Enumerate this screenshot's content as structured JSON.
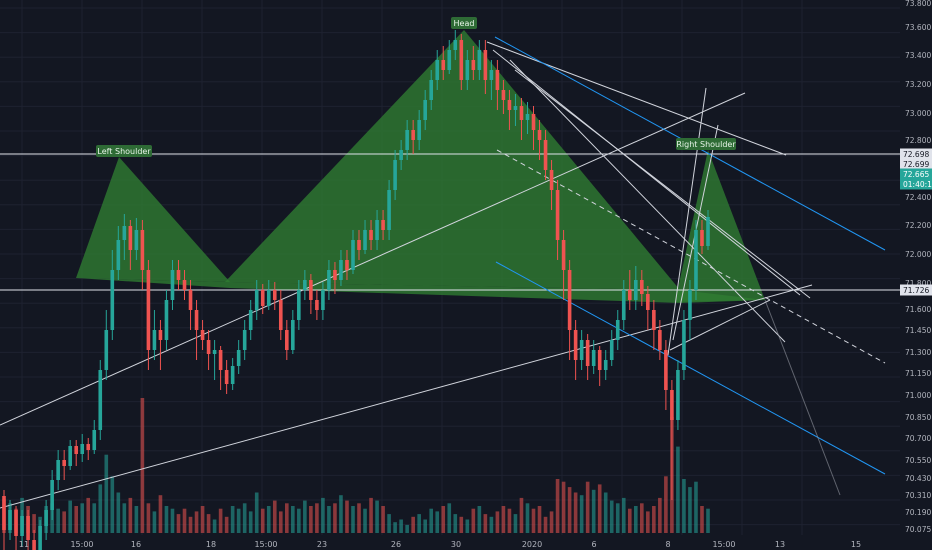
{
  "chart_data": {
    "type": "candlestick",
    "title": "",
    "price_axis": {
      "min": 70.0,
      "max": 73.7,
      "ticks": [
        "73.800",
        "73.600",
        "73.400",
        "73.200",
        "73.000",
        "72.800",
        "72.400",
        "72.200",
        "72.000",
        "71.800",
        "71.600",
        "71.450",
        "71.300",
        "71.150",
        "71.000",
        "70.850",
        "70.700",
        "70.550",
        "70.430",
        "70.310",
        "70.190",
        "70.075"
      ],
      "tick_values": [
        73.8,
        73.6,
        73.4,
        73.2,
        73.0,
        72.8,
        72.4,
        72.2,
        72.0,
        71.8,
        71.6,
        71.45,
        71.3,
        71.15,
        71.0,
        70.85,
        70.7,
        70.55,
        70.43,
        70.31,
        70.19,
        70.075
      ],
      "badges": [
        {
          "label": "72.698",
          "value": 72.698,
          "style": "line"
        },
        {
          "label": "72.699",
          "value": 72.675,
          "style": "line"
        },
        {
          "label": "72.665",
          "value": 72.62,
          "style": "last"
        },
        {
          "label": "01:40:10",
          "value": 72.56,
          "style": "last"
        },
        {
          "label": "71.726",
          "value": 71.726,
          "style": "line"
        }
      ]
    },
    "time_axis": {
      "labels": [
        "11",
        "15:00",
        "16",
        "18",
        "15:00",
        "23",
        "26",
        "30",
        "2020",
        "6",
        "8",
        "15:00",
        "13",
        "15"
      ],
      "positions": [
        0,
        1,
        2,
        3,
        4,
        5,
        6,
        7,
        8,
        9,
        10,
        11,
        12,
        13
      ]
    },
    "colors": {
      "background": "#131722",
      "up": "#26a69a",
      "down": "#ef5350",
      "pattern_fill": "#2f7d32",
      "trendline": "#d1d4dc",
      "channel": "#2196f3",
      "label_bg": "#2e6b35"
    },
    "annotations": [
      {
        "text": "Left Shoulder"
      },
      {
        "text": "Head"
      },
      {
        "text": "Right Shoulder"
      }
    ],
    "candles": [
      [
        71.27,
        71.1,
        71.3,
        71.0
      ],
      [
        71.1,
        71.2,
        71.25,
        71.05
      ],
      [
        71.2,
        71.07,
        71.22,
        70.98
      ],
      [
        71.07,
        71.17,
        71.2,
        71.02
      ],
      [
        71.17,
        71.05,
        71.2,
        70.98
      ],
      [
        71.05,
        70.98,
        71.1,
        70.92
      ],
      [
        70.98,
        71.12,
        71.15,
        70.95
      ],
      [
        71.12,
        71.2,
        71.25,
        71.05
      ],
      [
        71.2,
        71.35,
        71.4,
        71.15
      ],
      [
        71.35,
        71.45,
        71.5,
        71.3
      ],
      [
        71.45,
        71.42,
        71.5,
        71.35
      ],
      [
        71.42,
        71.52,
        71.55,
        71.4
      ],
      [
        71.52,
        71.48,
        71.55,
        71.42
      ],
      [
        71.48,
        71.53,
        71.58,
        71.44
      ],
      [
        71.53,
        71.5,
        71.56,
        71.45
      ],
      [
        71.5,
        71.6,
        71.65,
        71.48
      ],
      [
        71.6,
        71.9,
        71.95,
        71.55
      ],
      [
        71.9,
        72.1,
        72.2,
        71.85
      ],
      [
        72.1,
        72.4,
        72.5,
        72.05
      ],
      [
        72.4,
        72.55,
        72.62,
        72.35
      ],
      [
        72.55,
        72.62,
        72.68,
        72.45
      ],
      [
        72.62,
        72.5,
        72.65,
        72.4
      ],
      [
        72.5,
        72.6,
        72.66,
        72.45
      ],
      [
        72.6,
        72.4,
        72.65,
        72.3
      ],
      [
        72.4,
        72.0,
        72.45,
        71.9
      ],
      [
        72.0,
        72.1,
        72.2,
        71.95
      ],
      [
        72.1,
        72.05,
        72.15,
        71.9
      ],
      [
        72.05,
        72.25,
        72.3,
        72.0
      ],
      [
        72.25,
        72.4,
        72.45,
        72.2
      ],
      [
        72.4,
        72.35,
        72.45,
        72.3
      ],
      [
        72.35,
        72.3,
        72.4,
        72.25
      ],
      [
        72.3,
        72.2,
        72.35,
        72.1
      ],
      [
        72.2,
        72.1,
        72.25,
        71.95
      ],
      [
        72.1,
        72.05,
        72.15,
        72.0
      ],
      [
        72.05,
        71.98,
        72.1,
        71.9
      ],
      [
        71.98,
        72.0,
        72.05,
        71.85
      ],
      [
        72.0,
        71.9,
        72.02,
        71.8
      ],
      [
        71.9,
        71.83,
        71.95,
        71.78
      ],
      [
        71.83,
        71.92,
        71.96,
        71.8
      ],
      [
        71.92,
        72.0,
        72.05,
        71.88
      ],
      [
        72.0,
        72.1,
        72.15,
        71.95
      ],
      [
        72.1,
        72.2,
        72.25,
        72.05
      ],
      [
        72.2,
        72.3,
        72.35,
        72.15
      ],
      [
        72.3,
        72.22,
        72.33,
        72.18
      ],
      [
        72.22,
        72.3,
        72.35,
        72.2
      ],
      [
        72.3,
        72.25,
        72.34,
        72.2
      ],
      [
        72.25,
        72.1,
        72.3,
        72.05
      ],
      [
        72.1,
        72.0,
        72.15,
        71.95
      ],
      [
        72.0,
        72.15,
        72.2,
        71.98
      ],
      [
        72.15,
        72.3,
        72.35,
        72.1
      ],
      [
        72.3,
        72.35,
        72.4,
        72.25
      ],
      [
        72.35,
        72.25,
        72.38,
        72.18
      ],
      [
        72.25,
        72.2,
        72.3,
        72.15
      ],
      [
        72.2,
        72.3,
        72.34,
        72.15
      ],
      [
        72.3,
        72.4,
        72.45,
        72.25
      ],
      [
        72.4,
        72.35,
        72.44,
        72.28
      ],
      [
        72.35,
        72.45,
        72.5,
        72.32
      ],
      [
        72.45,
        72.4,
        72.5,
        72.35
      ],
      [
        72.4,
        72.55,
        72.6,
        72.38
      ],
      [
        72.55,
        72.5,
        72.6,
        72.45
      ],
      [
        72.5,
        72.6,
        72.65,
        72.48
      ],
      [
        72.6,
        72.55,
        72.65,
        72.5
      ],
      [
        72.55,
        72.65,
        72.7,
        72.5
      ],
      [
        72.65,
        72.6,
        72.7,
        72.55
      ],
      [
        72.6,
        72.8,
        72.85,
        72.55
      ],
      [
        72.8,
        72.95,
        73.0,
        72.75
      ],
      [
        72.95,
        73.0,
        73.05,
        72.9
      ],
      [
        73.0,
        73.1,
        73.15,
        72.95
      ],
      [
        73.1,
        73.05,
        73.15,
        72.98
      ],
      [
        73.05,
        73.15,
        73.2,
        73.0
      ],
      [
        73.15,
        73.25,
        73.3,
        73.1
      ],
      [
        73.25,
        73.35,
        73.4,
        73.2
      ],
      [
        73.35,
        73.45,
        73.5,
        73.3
      ],
      [
        73.45,
        73.4,
        73.52,
        73.35
      ],
      [
        73.4,
        73.5,
        73.55,
        73.38
      ],
      [
        73.5,
        73.55,
        73.6,
        73.45
      ],
      [
        73.55,
        73.35,
        73.58,
        73.3
      ],
      [
        73.35,
        73.45,
        73.5,
        73.3
      ],
      [
        73.45,
        73.4,
        73.52,
        73.35
      ],
      [
        73.4,
        73.5,
        73.55,
        73.35
      ],
      [
        73.5,
        73.35,
        73.55,
        73.28
      ],
      [
        73.35,
        73.4,
        73.45,
        73.25
      ],
      [
        73.4,
        73.3,
        73.45,
        73.2
      ],
      [
        73.3,
        73.25,
        73.35,
        73.18
      ],
      [
        73.25,
        73.2,
        73.3,
        73.1
      ],
      [
        73.2,
        73.22,
        73.28,
        73.12
      ],
      [
        73.22,
        73.15,
        73.26,
        73.05
      ],
      [
        73.15,
        73.18,
        73.24,
        73.08
      ],
      [
        73.18,
        73.1,
        73.22,
        73.0
      ],
      [
        73.1,
        73.05,
        73.15,
        72.95
      ],
      [
        73.05,
        72.9,
        73.1,
        72.85
      ],
      [
        72.9,
        72.8,
        72.95,
        72.7
      ],
      [
        72.8,
        72.55,
        72.85,
        72.45
      ],
      [
        72.55,
        72.4,
        72.6,
        72.25
      ],
      [
        72.4,
        72.1,
        72.45,
        71.95
      ],
      [
        72.1,
        71.95,
        72.15,
        71.85
      ],
      [
        71.95,
        72.05,
        72.1,
        71.9
      ],
      [
        72.05,
        71.92,
        72.08,
        71.85
      ],
      [
        71.92,
        72.0,
        72.05,
        71.88
      ],
      [
        72.0,
        71.9,
        72.02,
        71.82
      ],
      [
        71.9,
        71.95,
        72.0,
        71.85
      ],
      [
        71.95,
        72.05,
        72.1,
        71.92
      ],
      [
        72.05,
        72.15,
        72.2,
        72.0
      ],
      [
        72.15,
        72.3,
        72.35,
        72.1
      ],
      [
        72.3,
        72.25,
        72.4,
        72.2
      ],
      [
        72.25,
        72.35,
        72.42,
        72.2
      ],
      [
        72.35,
        72.28,
        72.4,
        72.22
      ],
      [
        72.28,
        72.2,
        72.32,
        72.1
      ],
      [
        72.2,
        72.1,
        72.25,
        72.0
      ],
      [
        72.1,
        72.0,
        72.15,
        71.95
      ],
      [
        72.0,
        71.8,
        72.05,
        71.7
      ],
      [
        71.8,
        71.65,
        71.85,
        71.25
      ],
      [
        71.65,
        71.9,
        71.95,
        71.6
      ],
      [
        71.9,
        72.15,
        72.2,
        71.85
      ],
      [
        72.15,
        72.3,
        72.35,
        72.05
      ],
      [
        72.3,
        72.6,
        72.65,
        72.25
      ],
      [
        72.6,
        72.52,
        72.65,
        72.48
      ],
      [
        72.52,
        72.665,
        72.7,
        72.5
      ]
    ],
    "volumes": [
      0.25,
      0.22,
      0.18,
      0.26,
      0.2,
      0.14,
      0.12,
      0.2,
      0.22,
      0.18,
      0.16,
      0.24,
      0.2,
      0.22,
      0.26,
      0.22,
      0.36,
      0.58,
      0.42,
      0.3,
      0.22,
      0.26,
      0.2,
      1.0,
      0.22,
      0.16,
      0.28,
      0.2,
      0.18,
      0.14,
      0.18,
      0.12,
      0.16,
      0.2,
      0.14,
      0.1,
      0.18,
      0.12,
      0.2,
      0.18,
      0.22,
      0.16,
      0.3,
      0.18,
      0.2,
      0.24,
      0.16,
      0.22,
      0.2,
      0.18,
      0.24,
      0.2,
      0.22,
      0.26,
      0.2,
      0.22,
      0.28,
      0.24,
      0.2,
      0.22,
      0.18,
      0.26,
      0.24,
      0.2,
      0.14,
      0.08,
      0.1,
      0.06,
      0.12,
      0.14,
      0.1,
      0.18,
      0.16,
      0.2,
      0.22,
      0.14,
      0.12,
      0.1,
      0.18,
      0.2,
      0.14,
      0.12,
      0.16,
      0.2,
      0.18,
      0.14,
      0.26,
      0.22,
      0.18,
      0.2,
      0.12,
      0.16,
      0.4,
      0.38,
      0.34,
      0.3,
      0.28,
      0.38,
      0.32,
      0.36,
      0.3,
      0.24,
      0.22,
      0.26,
      0.18,
      0.2,
      0.22,
      0.16,
      0.2,
      0.26,
      0.42,
      0.86,
      0.64,
      0.4,
      0.34,
      0.38,
      0.2,
      0.18
    ]
  }
}
